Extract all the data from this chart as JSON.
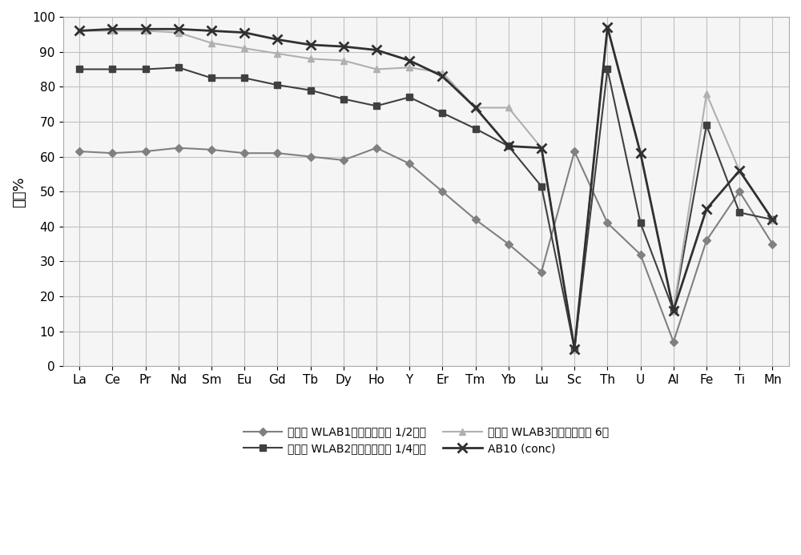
{
  "categories": [
    "La",
    "Ce",
    "Pr",
    "Nd",
    "Sm",
    "Eu",
    "Gd",
    "Tb",
    "Dy",
    "Ho",
    "Y",
    "Er",
    "Tm",
    "Yb",
    "Lu",
    "Sc",
    "Th",
    "U",
    "Al",
    "Fe",
    "Ti",
    "Mn"
  ],
  "series": [
    {
      "label": "测试： WLAB1，粉碎尺寸： 1/2英寸",
      "color": "#808080",
      "marker": "D",
      "markersize": 5,
      "linewidth": 1.5,
      "values": [
        61.5,
        61.0,
        61.5,
        62.5,
        62.0,
        61.0,
        61.0,
        60.0,
        59.0,
        62.5,
        58.0,
        50.0,
        42.0,
        35.0,
        27.0,
        61.5,
        41.0,
        32.0,
        7.0,
        36.0,
        50.0,
        35.0
      ]
    },
    {
      "label": "测试： WLAB2，粉碎尺寸： 1/4英寸",
      "color": "#404040",
      "marker": "s",
      "markersize": 6,
      "linewidth": 1.5,
      "values": [
        85.0,
        85.0,
        85.0,
        85.5,
        82.5,
        82.5,
        80.5,
        79.0,
        76.5,
        74.5,
        77.0,
        72.5,
        68.0,
        63.0,
        51.5,
        5.0,
        85.0,
        41.0,
        16.0,
        69.0,
        44.0,
        42.0
      ]
    },
    {
      "label": "测试： WLAB3，粉碎尺寸： 6目",
      "color": "#b0b0b0",
      "marker": "^",
      "markersize": 6,
      "linewidth": 1.5,
      "values": [
        96.0,
        96.0,
        96.0,
        95.5,
        92.5,
        91.0,
        89.5,
        88.0,
        87.5,
        85.0,
        85.5,
        84.0,
        74.0,
        74.0,
        62.5,
        5.0,
        97.0,
        61.0,
        16.0,
        78.0,
        56.0,
        42.0
      ]
    },
    {
      "label": "AB10 (conc)",
      "color": "#303030",
      "marker": "x",
      "markersize": 8,
      "linewidth": 2.0,
      "markeredgewidth": 2.0,
      "values": [
        96.0,
        96.5,
        96.5,
        96.5,
        96.0,
        95.5,
        93.5,
        92.0,
        91.5,
        90.5,
        87.5,
        83.0,
        74.0,
        63.0,
        62.5,
        5.0,
        97.0,
        61.0,
        16.0,
        45.0,
        56.0,
        42.0
      ]
    }
  ],
  "ylabel": "提取%",
  "ylim": [
    0,
    100
  ],
  "yticks": [
    0,
    10,
    20,
    30,
    40,
    50,
    60,
    70,
    80,
    90,
    100
  ],
  "grid_color": "#c0c0c0",
  "bg_color": "#f5f5f5",
  "figsize": [
    10.0,
    6.93
  ],
  "dpi": 100,
  "legend_labels": [
    "测试： WLAB1，粉碎尺寸： 1/2英寸",
    "测试： WLAB2，粉碎尺寸： 1/4英寸",
    "测试： WLAB3，粉碎尺寸： 6目",
    "AB10 (conc)"
  ]
}
